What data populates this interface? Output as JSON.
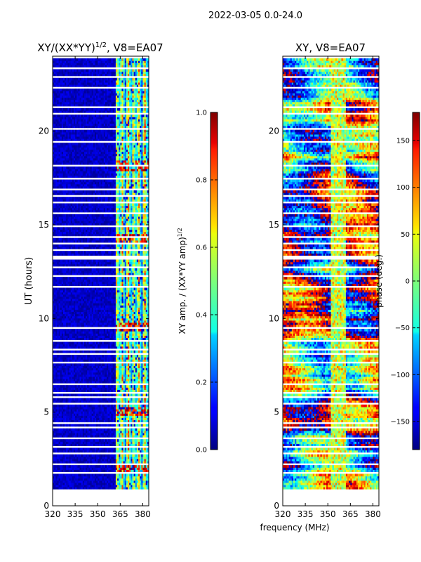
{
  "suptitle": "2022-03-05 0.0-24.0",
  "xlabel_common": "frequency (MHz)",
  "chart_data": [
    {
      "type": "heatmap",
      "title": "XY/(XX*YY)^1/2, V8=EA07",
      "title_main": "XY/(XX*YY)",
      "title_sup": "1/2",
      "title_tail": ", V8=EA07",
      "ylabel": "UT (hours)",
      "xlim": [
        320,
        384
      ],
      "ylim": [
        0,
        24
      ],
      "xticks": [
        320,
        335,
        350,
        365,
        380
      ],
      "yticks": [
        0,
        5,
        10,
        15,
        20
      ],
      "data_extent_hours": [
        0.9,
        24
      ],
      "active_band_mhz": [
        362,
        384
      ],
      "hot_blocks_hours": [
        1.9,
        5.0,
        9.5,
        14.2,
        18.1
      ],
      "colorbar": {
        "label": "XY amp. / (XX*YY amp)^1/2",
        "label_main": "XY amp. / (XX*YY amp)",
        "label_sup": "1/2",
        "range": [
          0.0,
          1.0
        ],
        "ticks": [
          "0.0",
          "0.2",
          "0.4",
          "0.6",
          "0.8",
          "1.0"
        ],
        "tick_values": [
          0.0,
          0.2,
          0.4,
          0.6,
          0.8,
          1.0
        ]
      }
    },
    {
      "type": "heatmap",
      "title": "XY, V8=EA07",
      "ylabel": "",
      "xlim": [
        320,
        384
      ],
      "ylim": [
        0,
        24
      ],
      "xticks": [
        320,
        335,
        350,
        365,
        380
      ],
      "yticks": [
        0,
        5,
        10,
        15,
        20
      ],
      "data_extent_hours": [
        0.9,
        24
      ],
      "colorbar": {
        "label": "phase (deg.)",
        "range": [
          -180,
          180
        ],
        "ticks": [
          "−150",
          "−100",
          "−50",
          "0",
          "50",
          "100",
          "150"
        ],
        "tick_values": [
          -150,
          -100,
          -50,
          0,
          50,
          100,
          150
        ]
      }
    }
  ]
}
